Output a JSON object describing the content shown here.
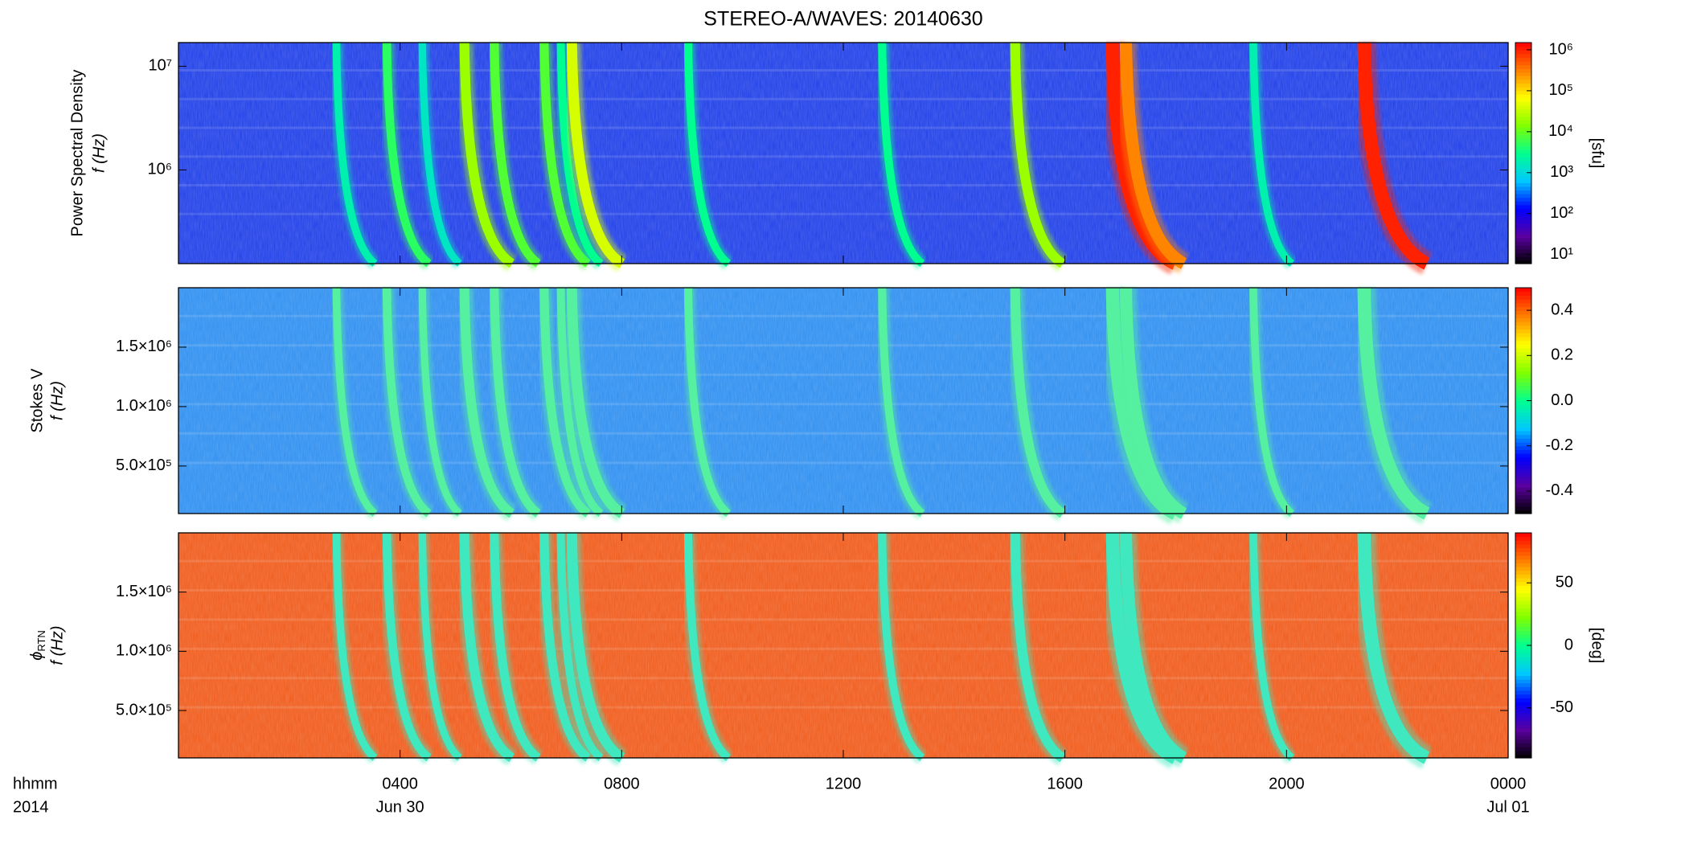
{
  "title": "STEREO-A/WAVES: 20140630",
  "chart_data": [
    {
      "type": "heatmap",
      "ylabel": "Power Spectral Density",
      "ylabel2": "f (Hz)",
      "ylog": true,
      "ylim": [
        125000,
        16900000
      ],
      "yticks": [
        {
          "value": 1000000,
          "label": "10⁶"
        },
        {
          "value": 10000000,
          "label": "10⁷"
        }
      ],
      "xlim": [
        0,
        24
      ],
      "xticks": [
        4,
        8,
        12,
        16,
        20,
        24
      ],
      "background_color": "#1f3fe8",
      "bursts": {
        "x": [
          2.85,
          3.76,
          4.4,
          5.16,
          5.7,
          6.6,
          6.9,
          7.1,
          9.2,
          12.7,
          15.1,
          16.86,
          17.1,
          19.4,
          21.4
        ],
        "values": [
          2000,
          5000,
          1500,
          20000,
          8000,
          8000,
          3000,
          40000,
          3000,
          3000,
          20000,
          1000000,
          300000,
          2000,
          1000000
        ]
      },
      "zlog": true,
      "zlim": [
        6,
        1500000
      ],
      "zticks": [
        {
          "value": 10,
          "label": "10¹"
        },
        {
          "value": 100,
          "label": "10²"
        },
        {
          "value": 1000,
          "label": "10³"
        },
        {
          "value": 10000,
          "label": "10⁴"
        },
        {
          "value": 100000,
          "label": "10⁵"
        },
        {
          "value": 1000000,
          "label": "10⁶"
        }
      ],
      "zlabel": "[sfu]",
      "colormap": [
        "#000000",
        "#5a00a0",
        "#0000ff",
        "#00c8ff",
        "#00ff90",
        "#80ff00",
        "#ffff00",
        "#ff8000",
        "#ff0000"
      ]
    },
    {
      "type": "heatmap",
      "ylabel": "Stokes V",
      "ylabel2": "f (Hz)",
      "ylim": [
        100000,
        2000000
      ],
      "yticks": [
        {
          "value": 500000,
          "label": "5.0×10⁵"
        },
        {
          "value": 1000000,
          "label": "1.0×10⁶"
        },
        {
          "value": 1500000,
          "label": "1.5×10⁶"
        }
      ],
      "xlim": [
        0,
        24
      ],
      "xticks": [
        4,
        8,
        12,
        16,
        20,
        24
      ],
      "background_color": "#2e8ff0",
      "zlim": [
        -0.5,
        0.5
      ],
      "zticks": [
        -0.4,
        -0.2,
        {
          "value": 0,
          "label": "0.0"
        },
        0.2,
        0.4
      ],
      "colormap": [
        "#000000",
        "#5a00a0",
        "#0000ff",
        "#00c8ff",
        "#00ff90",
        "#80ff00",
        "#ffff00",
        "#ff8000",
        "#ff0000"
      ]
    },
    {
      "type": "heatmap",
      "ylabel_symbol": "ϕ",
      "ylabel_sub": "RTN",
      "ylabel2": "f (Hz)",
      "ylim": [
        100000,
        2000000
      ],
      "yticks": [
        {
          "value": 500000,
          "label": "5.0×10⁵"
        },
        {
          "value": 1000000,
          "label": "1.0×10⁶"
        },
        {
          "value": 1500000,
          "label": "1.5×10⁶"
        }
      ],
      "xlim": [
        0,
        24
      ],
      "xticks": [
        {
          "value": 4,
          "label": "0400"
        },
        {
          "value": 8,
          "label": "0800"
        },
        {
          "value": 12,
          "label": "1200"
        },
        {
          "value": 16,
          "label": "1600"
        },
        {
          "value": 20,
          "label": "2000"
        },
        {
          "value": 24,
          "label": "0000"
        }
      ],
      "date_labels": [
        {
          "value": 4,
          "label": "Jun 30"
        },
        {
          "value": 24,
          "label": "Jul 01"
        }
      ],
      "xlabel": "hhmm",
      "year": "2014",
      "background_color": "#f05a1a",
      "zlim": [
        -90,
        90
      ],
      "zticks": [
        -50,
        0,
        50
      ],
      "zlabel": "[deg]",
      "colormap": [
        "#000000",
        "#5a00a0",
        "#0000ff",
        "#00c8ff",
        "#00ff90",
        "#80ff00",
        "#ffff00",
        "#ff8000",
        "#ff0000"
      ]
    }
  ]
}
